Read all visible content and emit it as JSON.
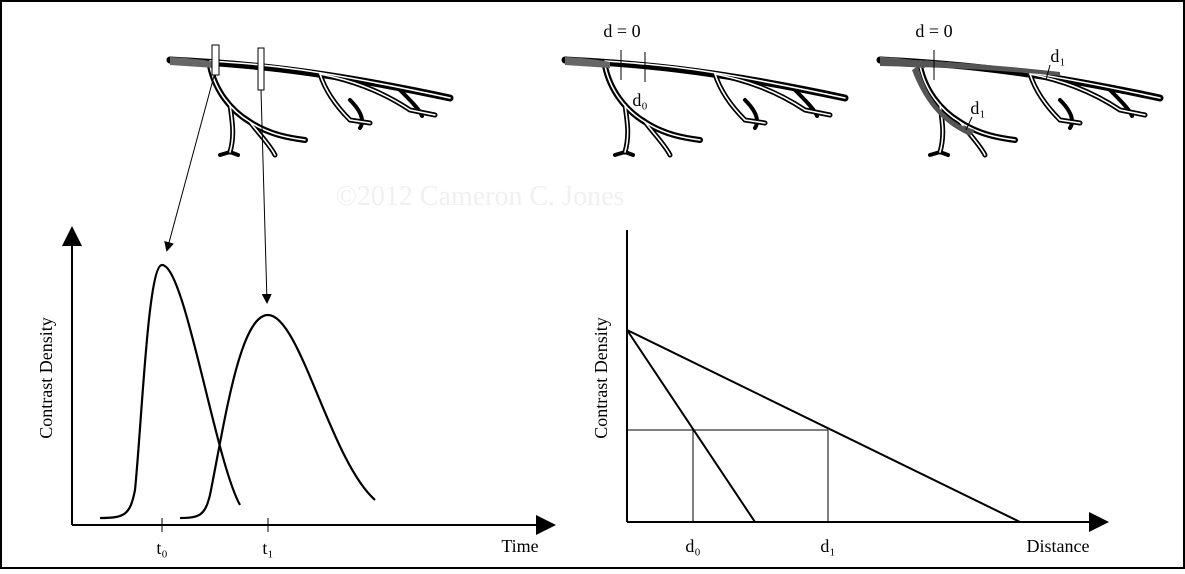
{
  "watermark": "©2012 Cameron C. Jones",
  "top": {
    "left_label": "d = 0",
    "left_sub_label": "d₀",
    "right_label": "d = 0",
    "right_branch_label_1": "d₁",
    "right_branch_label_2": "d₁"
  },
  "left_graph": {
    "y_axis_label": "Contrast Density",
    "x_axis_label": "Time",
    "tick_labels": [
      "t₀",
      "t₁"
    ]
  },
  "right_graph": {
    "y_axis_label": "Contrast Density",
    "x_axis_label": "Distance",
    "tick_labels": [
      "d₀",
      "d₁"
    ]
  }
}
